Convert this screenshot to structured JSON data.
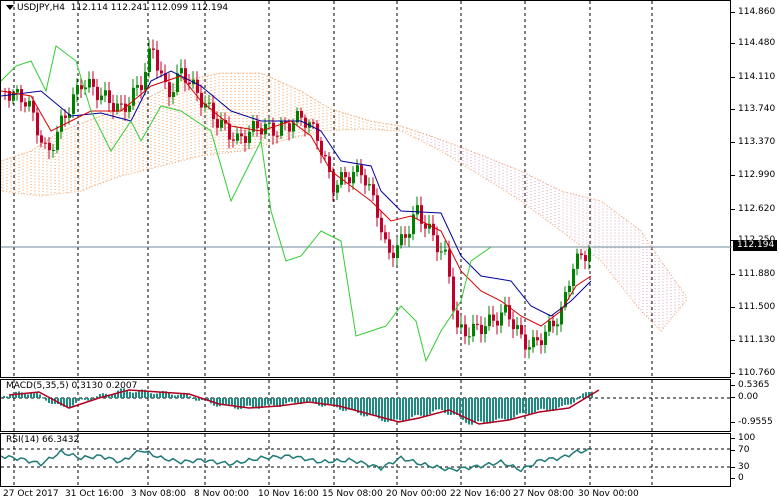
{
  "main": {
    "symbol": "USDJPY,H4",
    "ohlc": "112.114 112.241 112.099 112.194",
    "y_labels": [
      "114.860",
      "114.480",
      "114.110",
      "113.740",
      "113.370",
      "112.990",
      "112.620",
      "112.250",
      "111.880",
      "111.500",
      "111.130",
      "110.760"
    ],
    "current_price": "112.194"
  },
  "macd": {
    "title": "MACD(5,35,5) 0.3130 0.2007",
    "y_labels": [
      "0.5365",
      "0.00",
      "-0.9555"
    ]
  },
  "rsi": {
    "title": "RSI(14) 66.3432",
    "y_labels": [
      "100",
      "70",
      "30",
      "0"
    ]
  },
  "x_labels": [
    "27 Oct 2017",
    "31 Oct 16:00",
    "3 Nov 08:00",
    "8 Nov 00:00",
    "10 Nov 16:00",
    "15 Nov 08:00",
    "20 Nov 00:00",
    "22 Nov 16:00",
    "27 Nov 08:00",
    "30 Nov 00:00"
  ],
  "colors": {
    "bull": "#008000",
    "bear": "#c0002a",
    "tenkan": "#d40000",
    "kijun": "#000099",
    "chikou": "#33cc33",
    "cloud_up": "#f0a060",
    "cloud_down": "#e0a0c0",
    "histogram": "#1f8a82",
    "signal": "#b00020",
    "rsi": "#1f7a75"
  }
}
